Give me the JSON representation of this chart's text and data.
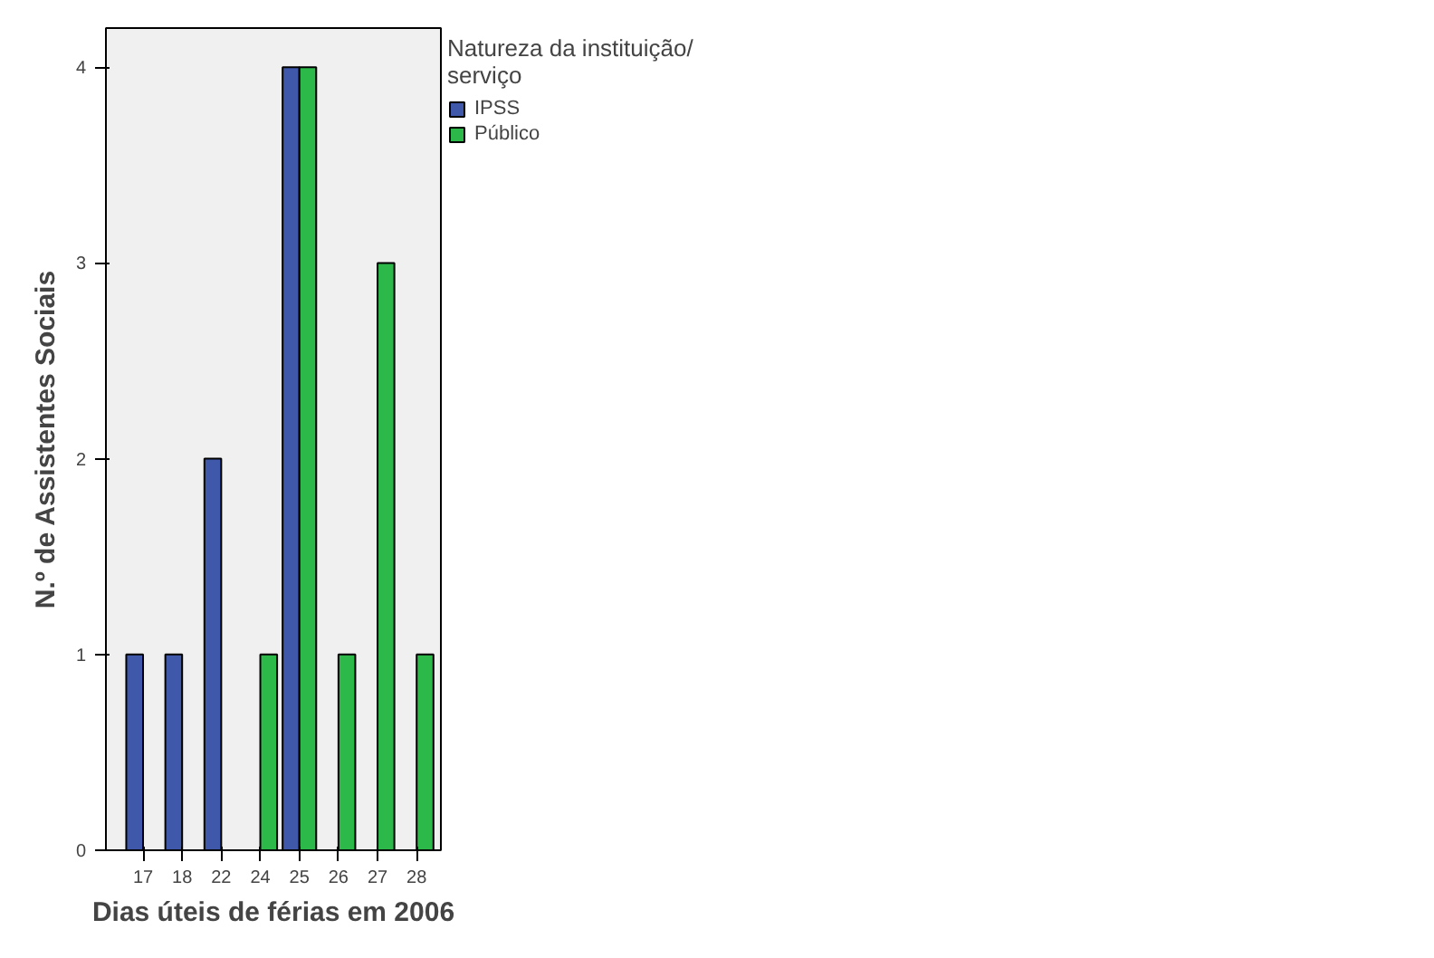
{
  "chart_data": {
    "type": "bar",
    "xlabel": "Dias úteis de férias em 2006",
    "ylabel": "N.º de Assistentes Sociais",
    "legend_title": "Natureza da instituição/ serviço",
    "categories": [
      "17",
      "18",
      "22",
      "24",
      "25",
      "26",
      "27",
      "28"
    ],
    "series": [
      {
        "name": "IPSS",
        "color": "#3f58aa",
        "values": [
          1,
          1,
          2,
          null,
          4,
          null,
          null,
          null
        ]
      },
      {
        "name": "Público",
        "color": "#2db84a",
        "values": [
          null,
          null,
          null,
          1,
          4,
          1,
          3,
          1
        ]
      }
    ],
    "ylim": [
      0,
      4.2
    ],
    "yticks": [
      0,
      1,
      2,
      3,
      4
    ],
    "grid": false,
    "legend": "top right"
  }
}
